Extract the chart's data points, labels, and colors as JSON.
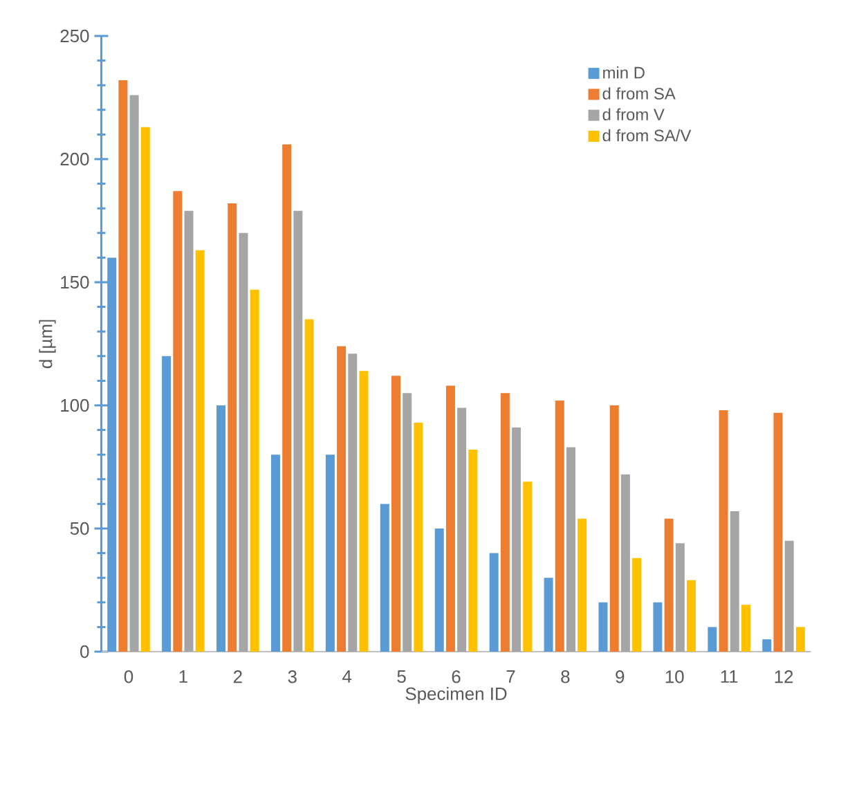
{
  "chart_data": {
    "type": "bar",
    "xlabel": "Specimen ID",
    "ylabel": "d [µm]",
    "categories": [
      "0",
      "1",
      "2",
      "3",
      "4",
      "5",
      "6",
      "7",
      "8",
      "9",
      "10",
      "11",
      "12"
    ],
    "series": [
      {
        "name": "min D",
        "color": "#5b9bd5",
        "values": [
          160,
          120,
          100,
          80,
          80,
          60,
          50,
          40,
          30,
          20,
          20,
          10,
          5
        ]
      },
      {
        "name": "d from SA",
        "color": "#ed7d31",
        "values": [
          232,
          187,
          182,
          206,
          124,
          112,
          108,
          105,
          102,
          100,
          54,
          98,
          97
        ]
      },
      {
        "name": "d from V",
        "color": "#a5a5a5",
        "values": [
          226,
          179,
          170,
          179,
          121,
          105,
          99,
          91,
          83,
          72,
          44,
          57,
          45
        ]
      },
      {
        "name": "d from SA/V",
        "color": "#ffc000",
        "values": [
          213,
          163,
          147,
          135,
          114,
          93,
          82,
          69,
          54,
          38,
          29,
          19,
          10
        ]
      }
    ],
    "ylim": [
      0,
      250
    ],
    "yticks": [
      0,
      50,
      100,
      150,
      200,
      250
    ],
    "grid": false,
    "legend": "top right"
  }
}
